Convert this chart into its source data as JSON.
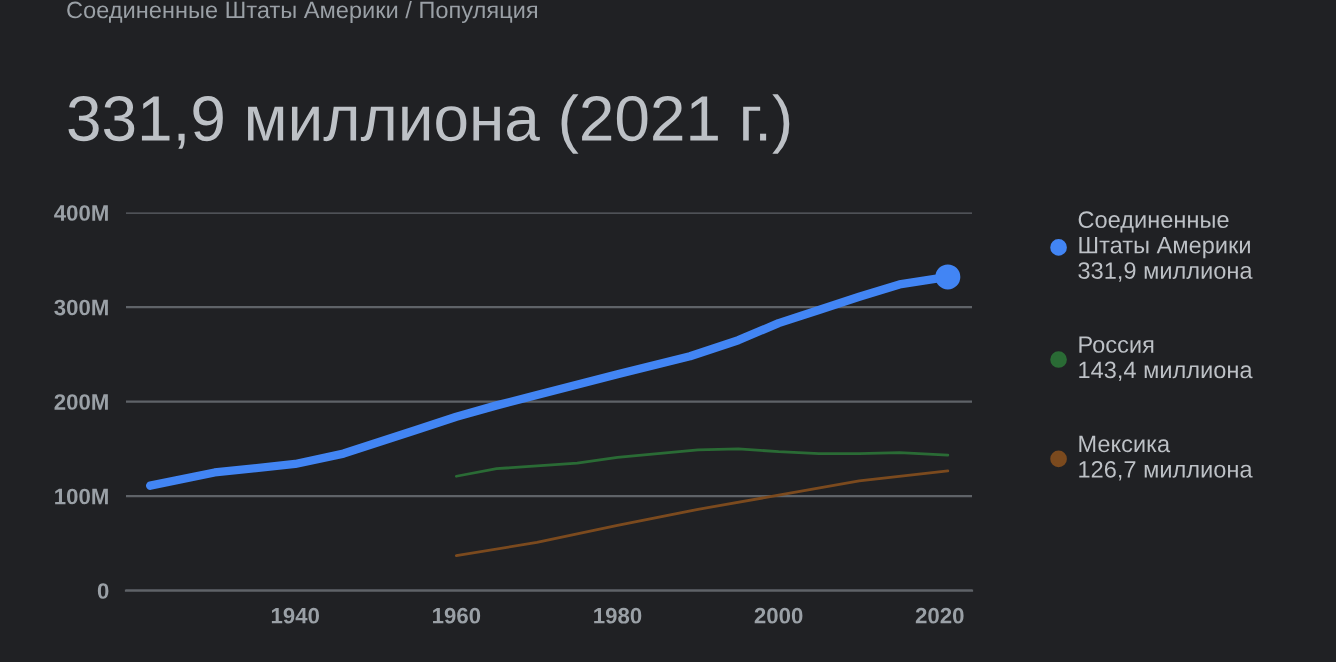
{
  "chart_data": {
    "type": "line",
    "title": "331,9 миллиона (2021 г.)",
    "annotations": [
      "Соединенные Штаты Америки / Популяция",
      "331,9 миллиона",
      "143,4 миллиона",
      "126,7 миллиона"
    ],
    "series": [
      {
        "name": "Соединенные Штаты Америки",
        "color": "#4285f4",
        "x": [
          1922,
          1930,
          1940,
          1946,
          1955,
          1960,
          1965,
          1970,
          1980,
          1989,
          1995,
          2000,
          2005,
          2010,
          2015,
          2021
        ],
        "values": [
          111,
          125,
          134,
          145,
          170,
          184,
          196,
          207,
          229,
          248,
          265,
          283,
          297,
          311,
          324,
          331.9
        ]
      },
      {
        "name": "Россия",
        "color": "#2a6b35",
        "x": [
          1960,
          1965,
          1975,
          1980,
          1990,
          1995,
          2000,
          2005,
          2010,
          2015,
          2021
        ],
        "values": [
          121,
          129,
          135,
          141,
          149,
          150,
          147,
          145,
          145,
          146,
          143.4
        ]
      },
      {
        "name": "Мексика",
        "color": "#7b4a1e",
        "x": [
          1960,
          1970,
          1980,
          1990,
          2000,
          2010,
          2021
        ],
        "values": [
          37,
          51,
          69,
          86,
          101,
          116,
          126.7
        ]
      }
    ],
    "xlim": [
      1919,
      2024
    ],
    "xticks": [
      1940,
      1960,
      1980,
      2000,
      2020
    ],
    "ylim": [
      0,
      400
    ],
    "yticks": [
      {
        "value": 0,
        "label": "0"
      },
      {
        "value": 100,
        "label": "100M"
      },
      {
        "value": 200,
        "label": "200M"
      },
      {
        "value": 300,
        "label": "300M"
      },
      {
        "value": 400,
        "label": "400M"
      }
    ],
    "grid": "y",
    "legend": "right"
  }
}
